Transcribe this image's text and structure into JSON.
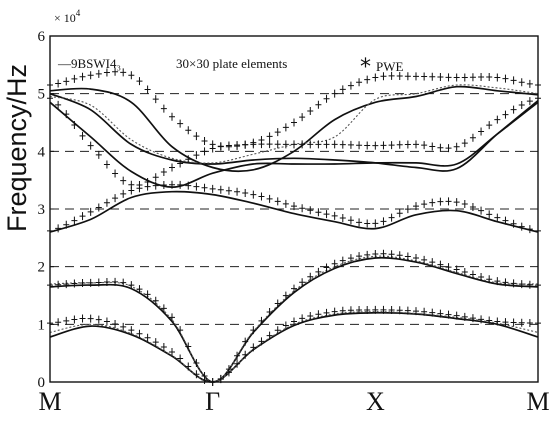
{
  "chart_data": {
    "type": "line",
    "title": "",
    "ylabel": "Frequency/Hz",
    "y_multiplier": "× 10^4",
    "y_multiplier_text": "× 10",
    "y_multiplier_exp": "4",
    "ylim": [
      0,
      6
    ],
    "yticks": [
      "0",
      "1",
      "2",
      "3",
      "4",
      "5",
      "6"
    ],
    "xlim": [
      0,
      3
    ],
    "xticks": [
      {
        "label": "M",
        "x": 0
      },
      {
        "label": "Γ",
        "x": 1
      },
      {
        "label": "X",
        "x": 2
      },
      {
        "label": "M",
        "x": 3
      }
    ],
    "grid": "dashed horizontal lines at y = 1, 2, 3, 4, 5",
    "legend": {
      "position": "top",
      "entries": [
        {
          "text": "—9BSWI4₃",
          "style": "line"
        },
        {
          "text": "30×30 plate elements",
          "style": "dotted-line"
        },
        {
          "text": "PWE",
          "style": "marker",
          "marker": "*"
        }
      ]
    },
    "x_samples": [
      0,
      0.25,
      0.5,
      0.75,
      1,
      1.25,
      1.5,
      1.75,
      2,
      2.25,
      2.5,
      2.75,
      3
    ],
    "series": [
      {
        "style": "solid",
        "values": [
          0.78,
          0.97,
          0.82,
          0.45,
          0.0,
          0.56,
          0.98,
          1.16,
          1.2,
          1.18,
          1.1,
          1.0,
          0.78
        ]
      },
      {
        "style": "solid",
        "values": [
          1.65,
          1.68,
          1.62,
          1.05,
          0.0,
          0.86,
          1.55,
          1.97,
          2.15,
          2.08,
          1.88,
          1.7,
          1.65
        ]
      },
      {
        "style": "solid",
        "values": [
          2.6,
          2.82,
          3.2,
          3.3,
          3.25,
          3.1,
          2.92,
          2.78,
          2.66,
          2.9,
          2.97,
          2.78,
          2.6
        ]
      },
      {
        "style": "solid",
        "values": [
          4.85,
          4.25,
          3.65,
          3.38,
          3.62,
          3.78,
          3.78,
          3.78,
          3.8,
          3.8,
          3.78,
          4.3,
          4.85
        ]
      },
      {
        "style": "solid",
        "values": [
          5.0,
          4.72,
          4.12,
          3.85,
          3.78,
          3.85,
          3.88,
          3.85,
          3.8,
          3.72,
          3.7,
          4.3,
          4.88
        ]
      },
      {
        "style": "solid",
        "values": [
          5.05,
          5.08,
          4.85,
          4.08,
          3.72,
          3.68,
          4.0,
          4.55,
          4.85,
          4.95,
          5.12,
          5.05,
          4.98
        ]
      },
      {
        "style": "dotted",
        "values": [
          0.86,
          1.0,
          0.84,
          0.46,
          0.0,
          0.57,
          1.0,
          1.18,
          1.22,
          1.19,
          1.12,
          1.02,
          0.86
        ]
      },
      {
        "style": "dotted",
        "values": [
          1.7,
          1.72,
          1.66,
          1.08,
          0.0,
          0.88,
          1.58,
          2.0,
          2.18,
          2.1,
          1.9,
          1.72,
          1.7
        ]
      },
      {
        "style": "dotted",
        "values": [
          4.95,
          4.8,
          4.2,
          3.88,
          3.8,
          3.95,
          4.12,
          4.25,
          4.9,
          5.0,
          5.15,
          5.1,
          5.0
        ]
      }
    ],
    "markers": {
      "symbol": "+",
      "series": [
        {
          "values": [
            1.02,
            1.1,
            0.9,
            0.52,
            0.0,
            0.6,
            1.05,
            1.22,
            1.25,
            1.23,
            1.15,
            1.05,
            1.02
          ]
        },
        {
          "values": [
            1.68,
            1.72,
            1.68,
            1.12,
            0.0,
            0.9,
            1.62,
            2.05,
            2.22,
            2.15,
            1.95,
            1.75,
            1.68
          ]
        },
        {
          "values": [
            2.62,
            2.95,
            3.32,
            3.42,
            3.35,
            3.25,
            3.05,
            2.88,
            2.75,
            3.05,
            3.12,
            2.85,
            2.62
          ]
        },
        {
          "values": [
            4.92,
            4.1,
            3.42,
            3.72,
            4.05,
            4.12,
            4.12,
            4.12,
            4.1,
            4.12,
            4.08,
            4.55,
            4.92
          ]
        },
        {
          "values": [
            5.15,
            5.32,
            5.32,
            4.6,
            4.12,
            4.15,
            4.5,
            5.0,
            5.28,
            5.3,
            5.28,
            5.28,
            5.15
          ]
        }
      ]
    }
  }
}
